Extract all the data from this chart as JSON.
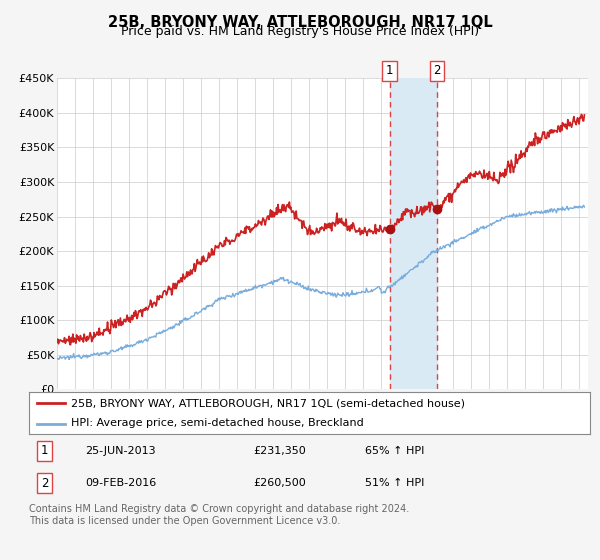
{
  "title": "25B, BRYONY WAY, ATTLEBOROUGH, NR17 1QL",
  "subtitle": "Price paid vs. HM Land Registry's House Price Index (HPI)",
  "ylabel_ticks": [
    "£0",
    "£50K",
    "£100K",
    "£150K",
    "£200K",
    "£250K",
    "£300K",
    "£350K",
    "£400K",
    "£450K"
  ],
  "ytick_values": [
    0,
    50000,
    100000,
    150000,
    200000,
    250000,
    300000,
    350000,
    400000,
    450000
  ],
  "ylim": [
    0,
    450000
  ],
  "xlim_start": 1995.0,
  "xlim_end": 2024.5,
  "hpi_color": "#7aaddc",
  "price_color": "#cc2222",
  "marker_color": "#aa1111",
  "shade_color": "#daeaf5",
  "vline_color": "#dd4444",
  "grid_color": "#cccccc",
  "bg_color": "#f5f5f5",
  "plot_bg": "#ffffff",
  "legend_label_price": "25B, BRYONY WAY, ATTLEBOROUGH, NR17 1QL (semi-detached house)",
  "legend_label_hpi": "HPI: Average price, semi-detached house, Breckland",
  "transaction1_date": 2013.48,
  "transaction1_price": 231350,
  "transaction1_label": "1",
  "transaction1_display": "25-JUN-2013",
  "transaction1_amount": "£231,350",
  "transaction1_pct": "65% ↑ HPI",
  "transaction2_date": 2016.1,
  "transaction2_price": 260500,
  "transaction2_label": "2",
  "transaction2_display": "09-FEB-2016",
  "transaction2_amount": "£260,500",
  "transaction2_pct": "51% ↑ HPI",
  "footer": "Contains HM Land Registry data © Crown copyright and database right 2024.\nThis data is licensed under the Open Government Licence v3.0.",
  "title_fontsize": 10.5,
  "subtitle_fontsize": 9,
  "tick_fontsize": 8,
  "legend_fontsize": 8,
  "footer_fontsize": 7
}
